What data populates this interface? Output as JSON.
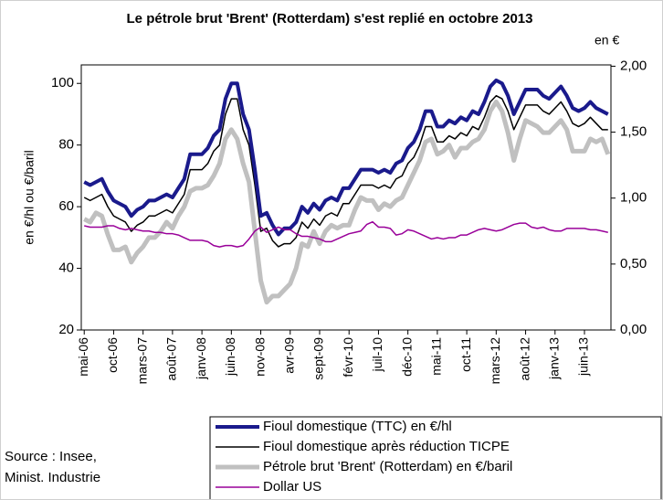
{
  "chart_data": {
    "type": "line",
    "title": "Le pétrole brut 'Brent' (Rotterdam) s'est replié en octobre 2013",
    "ylabel": "en €/hl ou €/baril",
    "y2label": "en €",
    "source": "Source : Insee,\nMinist. Industrie",
    "categories": [
      "mai-06",
      null,
      null,
      null,
      null,
      "oct-06",
      null,
      null,
      null,
      null,
      "mars-07",
      null,
      null,
      null,
      null,
      "août-07",
      null,
      null,
      null,
      null,
      "janv-08",
      null,
      null,
      null,
      null,
      "juin-08",
      null,
      null,
      null,
      null,
      "nov-08",
      null,
      null,
      null,
      null,
      "avr-09",
      null,
      null,
      null,
      null,
      "sept-09",
      null,
      null,
      null,
      null,
      "févr-10",
      null,
      null,
      null,
      null,
      "juil-10",
      null,
      null,
      null,
      null,
      "déc-10",
      null,
      null,
      null,
      null,
      "mai-11",
      null,
      null,
      null,
      null,
      "oct-11",
      null,
      null,
      null,
      null,
      "mars-12",
      null,
      null,
      null,
      null,
      "août-12",
      null,
      null,
      null,
      null,
      "janv-13",
      null,
      null,
      null,
      null,
      "juin-13",
      null,
      null,
      null,
      null
    ],
    "ylim": [
      20,
      106
    ],
    "yticks": [
      20,
      40,
      60,
      80,
      100
    ],
    "y2lim": [
      0,
      2.01
    ],
    "y2ticks": [
      {
        "value": 0,
        "label": "0,00"
      },
      {
        "value": 0.5,
        "label": "0,50"
      },
      {
        "value": 1,
        "label": "1,00"
      },
      {
        "value": 1.5,
        "label": "1,50"
      },
      {
        "value": 2,
        "label": "2,00"
      }
    ],
    "series": [
      {
        "name": "Pétrole brut 'Brent' (Rotterdam) en €/baril",
        "color": "#c0c0c0",
        "width": 5,
        "legend_order": 2,
        "values": [
          56,
          55,
          58,
          57,
          51,
          46,
          46,
          47,
          42,
          45,
          47,
          50,
          50,
          52,
          55,
          53,
          57,
          60,
          65,
          66,
          66,
          67,
          70,
          74,
          82,
          85,
          82,
          74,
          68,
          52,
          36,
          29,
          31,
          31,
          33,
          35,
          40,
          48,
          47,
          52,
          48,
          52,
          54,
          53,
          54,
          54,
          59,
          63,
          62,
          62,
          59,
          61,
          60,
          62,
          63,
          67,
          71,
          75,
          81,
          82,
          77,
          78,
          80,
          76,
          79,
          79,
          81,
          82,
          85,
          91,
          94,
          91,
          84,
          75,
          82,
          88,
          87,
          86,
          84,
          84,
          86,
          88,
          85,
          78,
          78,
          78,
          82,
          81,
          82,
          77
        ]
      },
      {
        "name": "Fioul domestique après réduction TICPE",
        "color": "#000000",
        "width": 1.5,
        "legend_order": 1,
        "values": [
          63,
          62,
          63,
          64,
          60,
          57,
          56,
          55,
          52,
          54,
          55,
          57,
          57,
          58,
          59,
          58,
          61,
          64,
          72,
          72,
          72,
          74,
          78,
          80,
          90,
          95,
          95,
          85,
          80,
          67,
          52,
          53,
          49,
          47,
          48,
          48,
          50,
          55,
          53,
          56,
          54,
          57,
          58,
          57,
          61,
          61,
          64,
          67,
          67,
          67,
          66,
          67,
          66,
          69,
          70,
          74,
          76,
          80,
          86,
          86,
          81,
          81,
          83,
          82,
          84,
          83,
          86,
          85,
          89,
          94,
          96,
          95,
          91,
          85,
          89,
          93,
          93,
          93,
          91,
          90,
          92,
          94,
          91,
          87,
          86,
          87,
          89,
          87,
          85,
          85
        ]
      },
      {
        "name": "Fioul domestique (TTC) en €/hl",
        "color": "#1a1a8c",
        "width": 4,
        "legend_order": 0,
        "values": [
          68,
          67,
          68,
          69,
          65,
          62,
          61,
          60,
          57,
          59,
          60,
          62,
          62,
          63,
          64,
          63,
          66,
          69,
          77,
          77,
          77,
          79,
          83,
          85,
          95,
          100,
          100,
          90,
          85,
          72,
          57,
          58,
          54,
          51,
          53,
          53,
          55,
          60,
          58,
          61,
          59,
          62,
          63,
          62,
          66,
          66,
          69,
          72,
          72,
          72,
          71,
          72,
          71,
          74,
          75,
          79,
          81,
          85,
          91,
          91,
          86,
          86,
          88,
          87,
          89,
          88,
          91,
          90,
          94,
          99,
          101,
          100,
          96,
          90,
          94,
          98,
          98,
          98,
          96,
          95,
          97,
          99,
          96,
          92,
          91,
          92,
          94,
          92,
          91,
          90
        ]
      },
      {
        "name": "Dollar US",
        "color": "#990099",
        "width": 1.5,
        "axis": "y2",
        "legend_order": 3,
        "values": [
          0.79,
          0.78,
          0.78,
          0.78,
          0.79,
          0.79,
          0.77,
          0.76,
          0.77,
          0.76,
          0.75,
          0.75,
          0.74,
          0.74,
          0.73,
          0.73,
          0.72,
          0.7,
          0.68,
          0.68,
          0.68,
          0.67,
          0.64,
          0.63,
          0.64,
          0.64,
          0.63,
          0.64,
          0.69,
          0.75,
          0.78,
          0.74,
          0.76,
          0.78,
          0.76,
          0.76,
          0.73,
          0.71,
          0.71,
          0.7,
          0.69,
          0.67,
          0.67,
          0.69,
          0.71,
          0.73,
          0.74,
          0.75,
          0.8,
          0.82,
          0.78,
          0.78,
          0.77,
          0.72,
          0.73,
          0.76,
          0.75,
          0.73,
          0.71,
          0.69,
          0.7,
          0.69,
          0.7,
          0.7,
          0.72,
          0.72,
          0.74,
          0.76,
          0.77,
          0.76,
          0.75,
          0.76,
          0.78,
          0.8,
          0.81,
          0.81,
          0.78,
          0.77,
          0.78,
          0.76,
          0.75,
          0.75,
          0.77,
          0.77,
          0.77,
          0.77,
          0.76,
          0.76,
          0.75,
          0.74
        ]
      }
    ]
  }
}
